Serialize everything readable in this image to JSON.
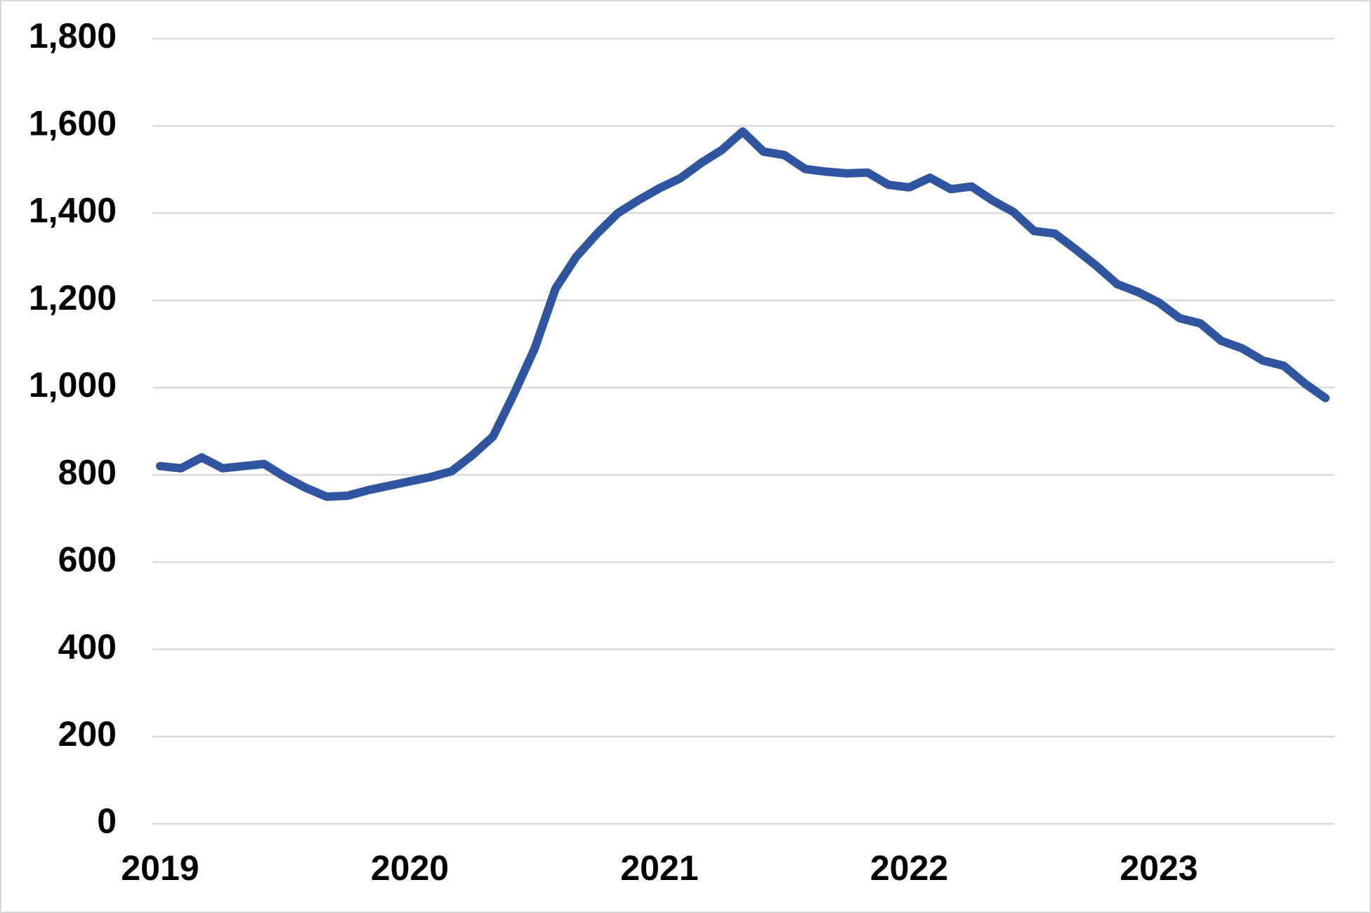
{
  "chart_data": {
    "type": "line",
    "categories": [
      "2019",
      null,
      null,
      null,
      null,
      null,
      null,
      null,
      null,
      null,
      null,
      null,
      "2020",
      null,
      null,
      null,
      null,
      null,
      null,
      null,
      null,
      null,
      null,
      null,
      "2021",
      null,
      null,
      null,
      null,
      null,
      null,
      null,
      null,
      null,
      null,
      null,
      "2022",
      null,
      null,
      null,
      null,
      null,
      null,
      null,
      null,
      null,
      null,
      null,
      "2023",
      null,
      null,
      null,
      null,
      null,
      null,
      null,
      null
    ],
    "series": [
      {
        "color": "#2f55a0",
        "values": [
          820,
          815,
          840,
          815,
          820,
          825,
          795,
          770,
          750,
          752,
          765,
          775,
          785,
          795,
          808,
          845,
          888,
          985,
          1090,
          1227,
          1300,
          1353,
          1400,
          1430,
          1457,
          1480,
          1515,
          1545,
          1587,
          1541,
          1533,
          1501,
          1495,
          1491,
          1493,
          1465,
          1459,
          1481,
          1455,
          1461,
          1429,
          1403,
          1359,
          1353,
          1317,
          1279,
          1237,
          1219,
          1195,
          1159,
          1147,
          1107,
          1090,
          1062,
          1050,
          1010,
          976
        ]
      }
    ],
    "ylim": [
      0,
      1800
    ],
    "yticks": [
      0,
      200,
      400,
      600,
      800,
      {
        "value": 1000,
        "label": "1,000"
      },
      {
        "value": 1200,
        "label": "1,200"
      },
      {
        "value": 1400,
        "label": "1,400"
      },
      {
        "value": 1600,
        "label": "1,600"
      },
      {
        "value": 1800,
        "label": "1,800"
      }
    ],
    "grid": true
  }
}
